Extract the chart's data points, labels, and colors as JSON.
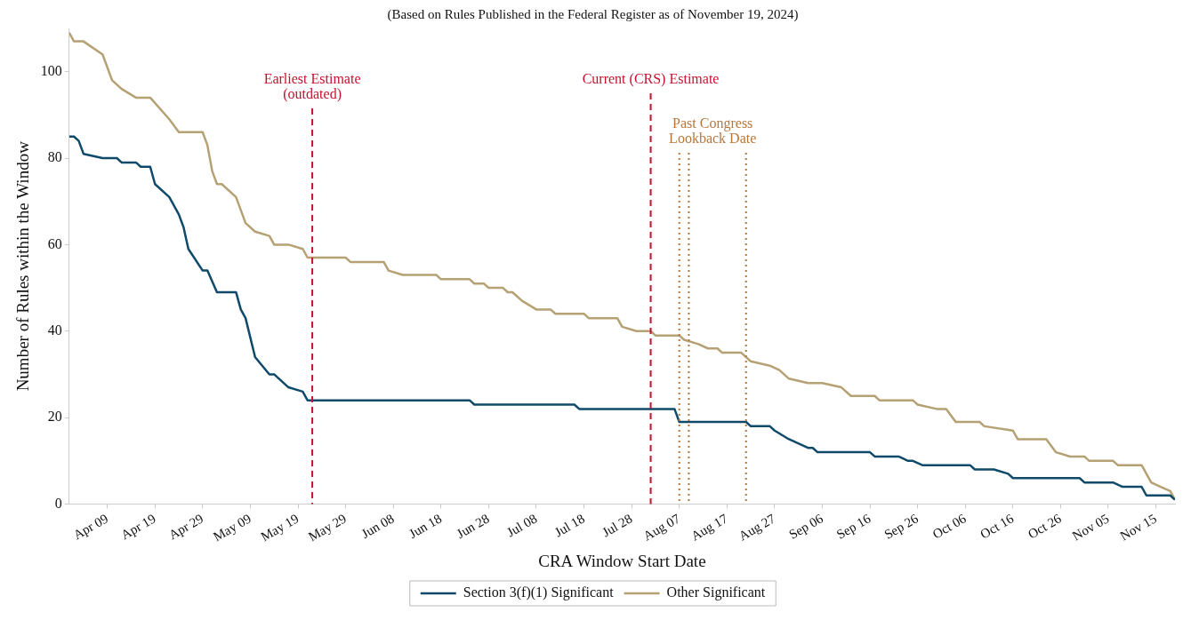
{
  "chart_data": {
    "type": "line",
    "subtitle": "(Based on Rules Published in the Federal Register as of November 19, 2024)",
    "xlabel": "CRA Window Start Date",
    "ylabel": "Number of Rules within the Window",
    "xlim": [
      "2024-04-01",
      "2024-11-19"
    ],
    "xticks": [
      {
        "value": "2024-04-09",
        "label": "Apr 09"
      },
      {
        "value": "2024-04-19",
        "label": "Apr 19"
      },
      {
        "value": "2024-04-29",
        "label": "Apr 29"
      },
      {
        "value": "2024-05-09",
        "label": "May 09"
      },
      {
        "value": "2024-05-19",
        "label": "May 19"
      },
      {
        "value": "2024-05-29",
        "label": "May 29"
      },
      {
        "value": "2024-06-08",
        "label": "Jun 08"
      },
      {
        "value": "2024-06-18",
        "label": "Jun 18"
      },
      {
        "value": "2024-06-28",
        "label": "Jun 28"
      },
      {
        "value": "2024-07-08",
        "label": "Jul 08"
      },
      {
        "value": "2024-07-18",
        "label": "Jul 18"
      },
      {
        "value": "2024-07-28",
        "label": "Jul 28"
      },
      {
        "value": "2024-08-07",
        "label": "Aug 07"
      },
      {
        "value": "2024-08-17",
        "label": "Aug 17"
      },
      {
        "value": "2024-08-27",
        "label": "Aug 27"
      },
      {
        "value": "2024-09-06",
        "label": "Sep 06"
      },
      {
        "value": "2024-09-16",
        "label": "Sep 16"
      },
      {
        "value": "2024-09-26",
        "label": "Sep 26"
      },
      {
        "value": "2024-10-06",
        "label": "Oct 06"
      },
      {
        "value": "2024-10-16",
        "label": "Oct 16"
      },
      {
        "value": "2024-10-26",
        "label": "Oct 26"
      },
      {
        "value": "2024-11-05",
        "label": "Nov 05"
      },
      {
        "value": "2024-11-15",
        "label": "Nov 15"
      }
    ],
    "ylim": [
      0,
      110
    ],
    "yticks": [
      0,
      20,
      40,
      60,
      80,
      100
    ],
    "grid": false,
    "legend": "bottom",
    "marker": "none",
    "line_style": "solid",
    "series": [
      {
        "name": "Section 3(f)(1) Significant",
        "color": "#0f4a6b",
        "x": [
          "2024-04-01",
          "2024-04-02",
          "2024-04-03",
          "2024-04-04",
          "2024-04-08",
          "2024-04-11",
          "2024-04-12",
          "2024-04-15",
          "2024-04-16",
          "2024-04-18",
          "2024-04-19",
          "2024-04-22",
          "2024-04-24",
          "2024-04-25",
          "2024-04-26",
          "2024-04-29",
          "2024-04-30",
          "2024-05-02",
          "2024-05-06",
          "2024-05-07",
          "2024-05-08",
          "2024-05-10",
          "2024-05-13",
          "2024-05-14",
          "2024-05-17",
          "2024-05-20",
          "2024-05-21",
          "2024-06-24",
          "2024-06-25",
          "2024-07-16",
          "2024-07-17",
          "2024-08-06",
          "2024-08-07",
          "2024-08-21",
          "2024-08-22",
          "2024-08-26",
          "2024-08-27",
          "2024-08-30",
          "2024-09-03",
          "2024-09-04",
          "2024-09-05",
          "2024-09-16",
          "2024-09-17",
          "2024-09-22",
          "2024-09-24",
          "2024-09-25",
          "2024-09-27",
          "2024-10-07",
          "2024-10-08",
          "2024-10-12",
          "2024-10-15",
          "2024-10-16",
          "2024-10-30",
          "2024-10-31",
          "2024-11-06",
          "2024-11-08",
          "2024-11-12",
          "2024-11-13",
          "2024-11-18",
          "2024-11-19"
        ],
        "values": [
          85,
          85,
          84,
          81,
          80,
          80,
          79,
          79,
          78,
          78,
          74,
          71,
          67,
          64,
          59,
          54,
          54,
          49,
          49,
          45,
          43,
          34,
          30,
          30,
          27,
          26,
          24,
          24,
          23,
          23,
          22,
          22,
          19,
          19,
          18,
          18,
          17,
          15,
          13,
          13,
          12,
          12,
          11,
          11,
          10,
          10,
          9,
          9,
          8,
          8,
          7,
          6,
          6,
          5,
          5,
          4,
          4,
          2,
          2,
          1
        ]
      },
      {
        "name": "Other Significant",
        "color": "#b5a173",
        "x": [
          "2024-04-01",
          "2024-04-02",
          "2024-04-04",
          "2024-04-08",
          "2024-04-10",
          "2024-04-12",
          "2024-04-15",
          "2024-04-18",
          "2024-04-22",
          "2024-04-24",
          "2024-04-29",
          "2024-04-30",
          "2024-05-01",
          "2024-05-02",
          "2024-05-03",
          "2024-05-06",
          "2024-05-08",
          "2024-05-10",
          "2024-05-13",
          "2024-05-14",
          "2024-05-17",
          "2024-05-20",
          "2024-05-21",
          "2024-05-29",
          "2024-05-30",
          "2024-06-06",
          "2024-06-07",
          "2024-06-10",
          "2024-06-17",
          "2024-06-18",
          "2024-06-24",
          "2024-06-25",
          "2024-06-27",
          "2024-06-28",
          "2024-07-01",
          "2024-07-02",
          "2024-07-03",
          "2024-07-05",
          "2024-07-08",
          "2024-07-11",
          "2024-07-12",
          "2024-07-18",
          "2024-07-19",
          "2024-07-25",
          "2024-07-26",
          "2024-07-29",
          "2024-08-01",
          "2024-08-02",
          "2024-08-07",
          "2024-08-08",
          "2024-08-11",
          "2024-08-13",
          "2024-08-15",
          "2024-08-16",
          "2024-08-20",
          "2024-08-22",
          "2024-08-26",
          "2024-08-28",
          "2024-08-30",
          "2024-09-03",
          "2024-09-06",
          "2024-09-10",
          "2024-09-12",
          "2024-09-17",
          "2024-09-18",
          "2024-09-25",
          "2024-09-26",
          "2024-09-30",
          "2024-10-02",
          "2024-10-04",
          "2024-10-09",
          "2024-10-10",
          "2024-10-16",
          "2024-10-17",
          "2024-10-23",
          "2024-10-25",
          "2024-10-28",
          "2024-10-31",
          "2024-11-01",
          "2024-11-06",
          "2024-11-07",
          "2024-11-12",
          "2024-11-14",
          "2024-11-16",
          "2024-11-18",
          "2024-11-19"
        ],
        "values": [
          109,
          107,
          107,
          104,
          98,
          96,
          94,
          94,
          89,
          86,
          86,
          83,
          77,
          74,
          74,
          71,
          65,
          63,
          62,
          60,
          60,
          59,
          57,
          57,
          56,
          56,
          54,
          53,
          53,
          52,
          52,
          51,
          51,
          50,
          50,
          49,
          49,
          47,
          45,
          45,
          44,
          44,
          43,
          43,
          41,
          40,
          40,
          39,
          39,
          38,
          37,
          36,
          36,
          35,
          35,
          33,
          32,
          31,
          29,
          28,
          28,
          27,
          25,
          25,
          24,
          24,
          23,
          22,
          22,
          19,
          19,
          18,
          17,
          15,
          15,
          12,
          11,
          11,
          10,
          10,
          9,
          9,
          5,
          4,
          3,
          1
        ]
      }
    ],
    "ref_lines": [
      {
        "axis": "x",
        "value": "2024-05-22",
        "label": "Earliest Estimate\n(outdated)",
        "color": "#c8102e",
        "line_style": "dashed"
      },
      {
        "axis": "x",
        "value": "2024-08-01",
        "label": "Current (CRS) Estimate",
        "color": "#c8102e",
        "line_style": "dashed"
      },
      {
        "axis": "x",
        "value": "2024-08-07",
        "label": "Past Congress\nLookback Date",
        "color": "#b8763a",
        "line_style": "dotted"
      },
      {
        "axis": "x",
        "value": "2024-08-09",
        "label": null,
        "color": "#b8763a",
        "line_style": "dotted"
      },
      {
        "axis": "x",
        "value": "2024-08-21",
        "label": null,
        "color": "#b8763a",
        "line_style": "dotted"
      }
    ]
  }
}
